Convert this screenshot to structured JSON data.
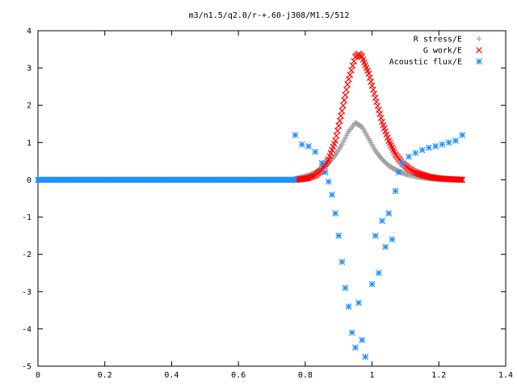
{
  "chart_data": {
    "type": "scatter",
    "title": "m3/n1.5/q2.0/r-+.60-j308/M1.5/512",
    "xlabel": "",
    "ylabel": "",
    "xlim": [
      0,
      1.4
    ],
    "ylim": [
      -5,
      4
    ],
    "x_ticks": [
      "0",
      "0.2",
      "0.4",
      "0.6",
      "0.8",
      "1",
      "1.2",
      "1.4"
    ],
    "y_ticks": [
      "4",
      "3",
      "2",
      "1",
      "0",
      "-1",
      "-2",
      "-3",
      "-4",
      "-5"
    ],
    "grid": false,
    "legend_position": "top-right",
    "series": [
      {
        "name": "R stress/E",
        "marker": "plus",
        "color": "#a0a0a0",
        "x": [
          0.77,
          0.79,
          0.81,
          0.83,
          0.85,
          0.87,
          0.89,
          0.91,
          0.93,
          0.95,
          0.97,
          0.99,
          1.01,
          1.03,
          1.05,
          1.07,
          1.09,
          1.11,
          1.13,
          1.15,
          1.17,
          1.19,
          1.21,
          1.23,
          1.25,
          1.27
        ],
        "y": [
          0.03,
          0.07,
          0.12,
          0.2,
          0.3,
          0.45,
          0.66,
          0.95,
          1.3,
          1.53,
          1.42,
          1.1,
          0.78,
          0.55,
          0.38,
          0.27,
          0.19,
          0.13,
          0.09,
          0.06,
          0.04,
          0.03,
          0.02,
          0.01,
          0.01,
          0.0
        ]
      },
      {
        "name": "G work/E",
        "marker": "cross",
        "color": "#ff0000",
        "x": [
          0.77,
          0.79,
          0.81,
          0.83,
          0.85,
          0.87,
          0.89,
          0.91,
          0.93,
          0.95,
          0.96,
          0.97,
          0.99,
          1.01,
          1.03,
          1.05,
          1.07,
          1.09,
          1.11,
          1.13,
          1.15,
          1.17,
          1.19,
          1.21,
          1.23,
          1.25,
          1.27
        ],
        "y": [
          0.0,
          0.02,
          0.05,
          0.12,
          0.27,
          0.55,
          1.05,
          1.85,
          2.7,
          3.3,
          3.38,
          3.3,
          2.85,
          2.2,
          1.55,
          1.05,
          0.68,
          0.45,
          0.3,
          0.2,
          0.13,
          0.08,
          0.05,
          0.03,
          0.02,
          0.01,
          0.0
        ]
      },
      {
        "name": "Acoustic flux/E",
        "marker": "star",
        "color": "#1e90ff",
        "x": [
          0.0,
          0.05,
          0.1,
          0.15,
          0.2,
          0.25,
          0.3,
          0.35,
          0.4,
          0.45,
          0.5,
          0.55,
          0.6,
          0.65,
          0.7,
          0.75,
          0.77,
          0.77,
          0.79,
          0.81,
          0.83,
          0.85,
          0.86,
          0.87,
          0.88,
          0.89,
          0.9,
          0.91,
          0.92,
          0.93,
          0.94,
          0.95,
          0.96,
          0.97,
          0.98,
          1.0,
          1.01,
          1.02,
          1.03,
          1.04,
          1.05,
          1.06,
          1.07,
          1.08,
          1.09,
          1.11,
          1.13,
          1.15,
          1.17,
          1.19,
          1.21,
          1.23,
          1.25,
          1.27
        ],
        "y": [
          0.0,
          0.0,
          0.0,
          0.0,
          0.0,
          0.0,
          0.0,
          0.0,
          0.0,
          0.0,
          0.0,
          0.0,
          0.0,
          0.0,
          0.0,
          0.0,
          0.0,
          1.2,
          0.95,
          0.9,
          0.75,
          0.45,
          0.2,
          -0.05,
          -0.4,
          -0.9,
          -1.5,
          -2.2,
          -2.9,
          -3.4,
          -4.1,
          -4.5,
          -3.3,
          -4.3,
          -4.75,
          -2.8,
          -1.5,
          -2.5,
          -1.1,
          -1.8,
          -0.9,
          -1.6,
          -0.3,
          0.2,
          0.45,
          0.62,
          0.72,
          0.8,
          0.86,
          0.9,
          0.95,
          1.0,
          1.05,
          1.2
        ]
      }
    ]
  }
}
